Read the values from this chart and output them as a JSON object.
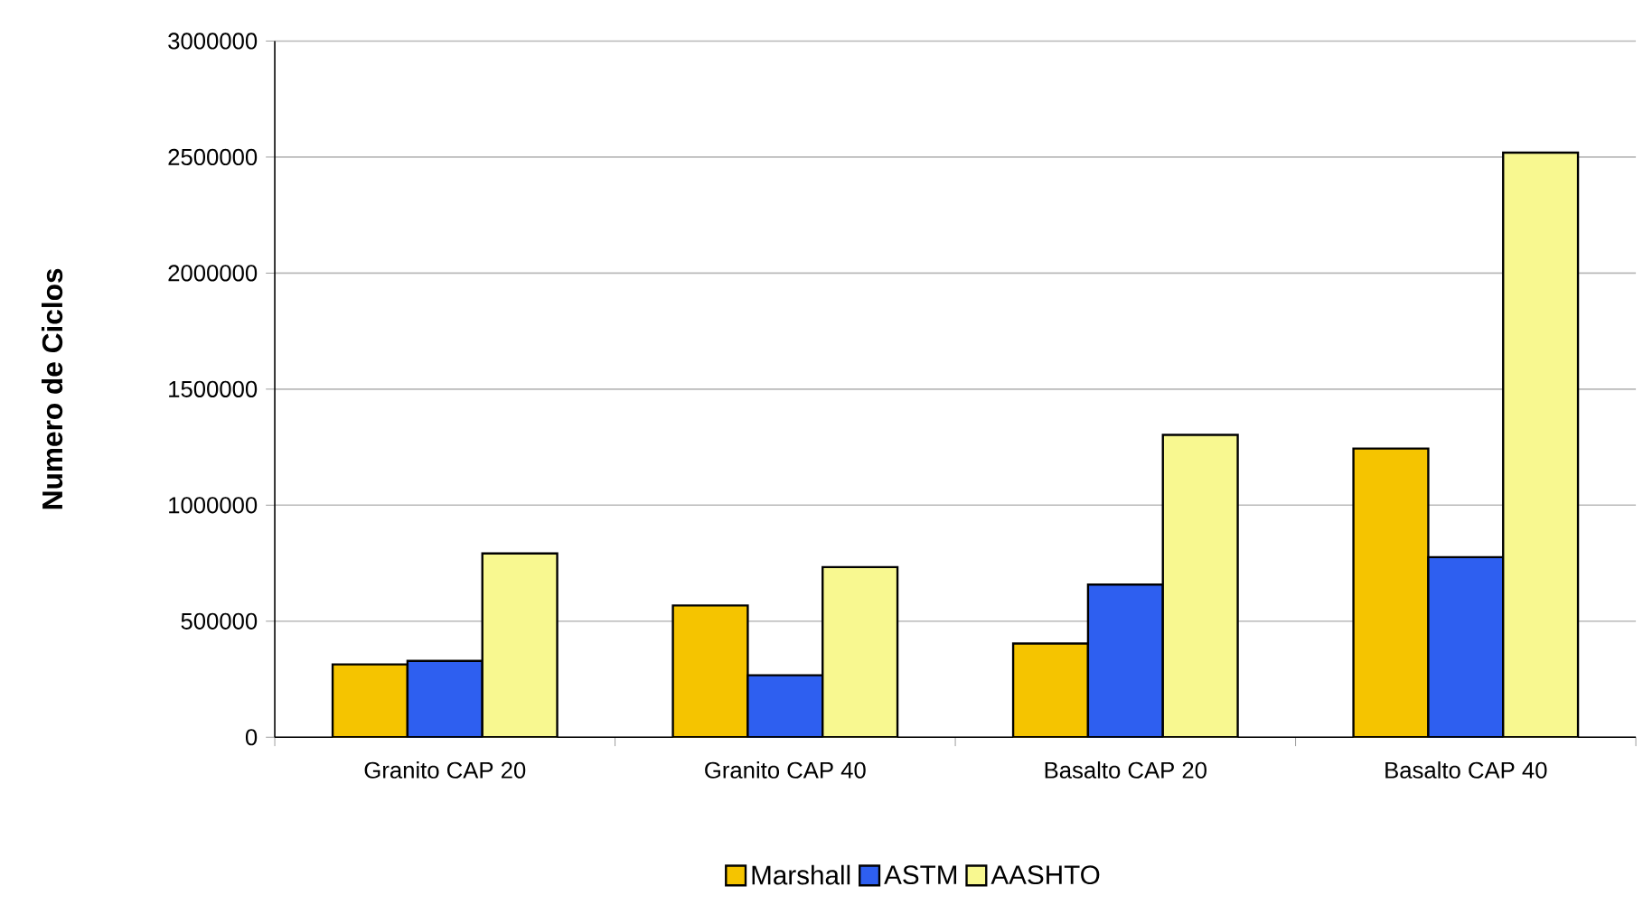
{
  "chart_data": {
    "type": "bar",
    "ylabel": "Numero de Ciclos",
    "categories": [
      "Granito CAP 20",
      "Granito CAP 40",
      "Basalto CAP 20",
      "Basalto CAP 40"
    ],
    "series": [
      {
        "name": "Marshall",
        "color": "#f5c400",
        "values": [
          314000,
          568000,
          404000,
          1244000
        ]
      },
      {
        "name": "ASTM",
        "color": "#2e5ff0",
        "values": [
          329000,
          267000,
          658000,
          776000
        ]
      },
      {
        "name": "AASHTO",
        "color": "#f8f890",
        "values": [
          792000,
          733000,
          1303000,
          2519000
        ]
      }
    ],
    "ylim": [
      0,
      3000000
    ],
    "yticks": [
      0,
      500000,
      1000000,
      1500000,
      2000000,
      2500000,
      3000000
    ],
    "grid": "y",
    "legend": "bottom"
  }
}
